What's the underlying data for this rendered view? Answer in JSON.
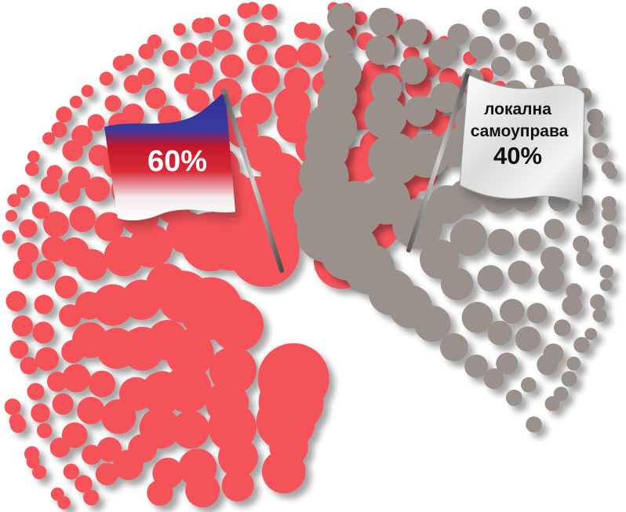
{
  "chart_data": {
    "type": "pie",
    "slices": [
      {
        "label": "",
        "value": 60,
        "value_label": "60%",
        "color": "#f5535a",
        "flag": "tricolor"
      },
      {
        "label": "локална самоуправа",
        "label_lines": [
          "локална",
          "самоуправа"
        ],
        "value": 40,
        "value_label": "40%",
        "color": "#9a908c",
        "flag": "white"
      }
    ],
    "title": "",
    "xlabel": "",
    "ylabel": ""
  }
}
